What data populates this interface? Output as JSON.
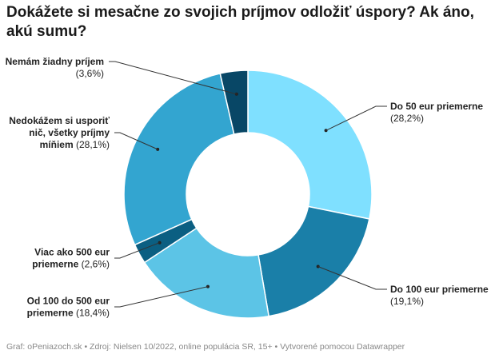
{
  "title": "Dokážete si mesačne zo svojich príjmov odložiť úspory? Ak áno, akú sumu?",
  "footer": "Graf: oPeniazoch.sk • Zdroj: Nielsen 10/2022, online populácia SR, 15+ • Vytvorené pomocou Datawrapper",
  "chart_data": {
    "type": "pie",
    "donut": true,
    "title": "Dokážete si mesačne zo svojich príjmov odložiť úspory? Ak áno, akú sumu?",
    "slices": [
      {
        "label_lines": [
          "Do 50 eur priemerne"
        ],
        "value_text": "(28,2%)",
        "value": 28.2,
        "color": "#7fe0ff"
      },
      {
        "label_lines": [
          "Do 100 eur priemerne"
        ],
        "value_text": "(19,1%)",
        "value": 19.1,
        "color": "#1a7fa8"
      },
      {
        "label_lines": [
          "Od 100 do 500 eur",
          "priemerne"
        ],
        "value_text": "(18,4%)",
        "value": 18.4,
        "color": "#5cc4e6"
      },
      {
        "label_lines": [
          "Viac ako 500 eur",
          "priemerne"
        ],
        "value_text": "(2,6%)",
        "value": 2.6,
        "color": "#0b5f82"
      },
      {
        "label_lines": [
          "Nedokážem si usporiť",
          "nič, všetky príjmy",
          "míňiem"
        ],
        "value_text": "(28,1%)",
        "value": 28.1,
        "color": "#33a5d0"
      },
      {
        "label_lines": [
          "Nemám žiadny príjem"
        ],
        "value_text": "(3,6%)",
        "value": 3.6,
        "color": "#084766"
      }
    ]
  }
}
